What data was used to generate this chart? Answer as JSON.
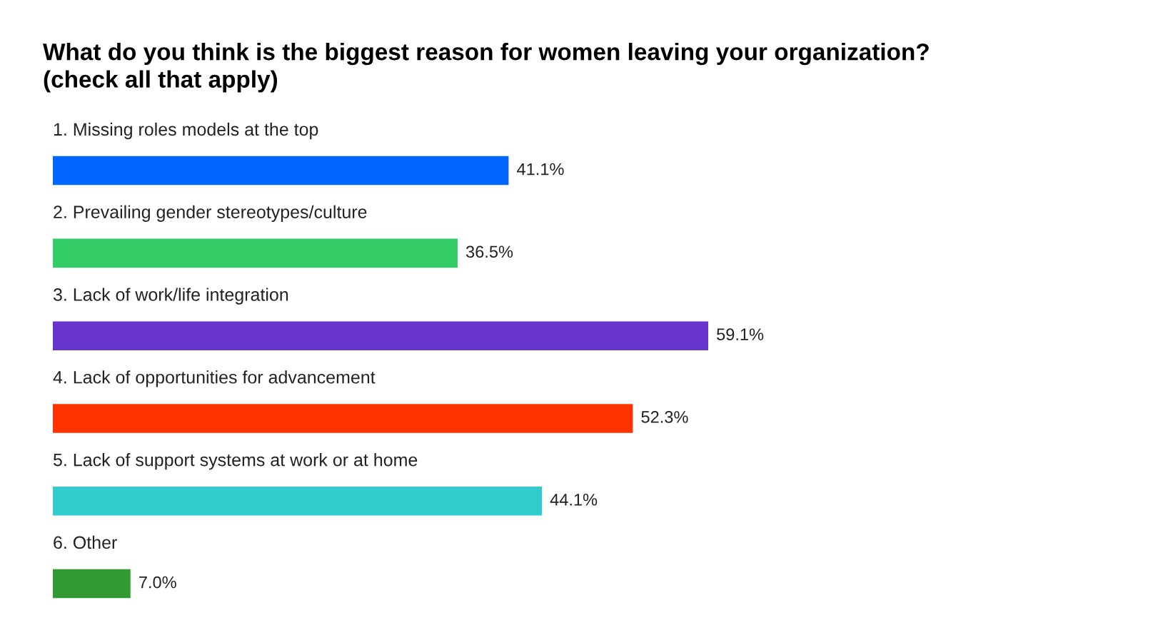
{
  "chart_data": {
    "type": "bar",
    "orientation": "horizontal",
    "title": "What do you think is the biggest reason for women leaving your organization?\n(check all that apply)",
    "categories": [
      "1. Missing roles models at the top",
      "2. Prevailing gender stereotypes/culture",
      "3. Lack of work/life integration",
      "4. Lack of opportunities for advancement",
      "5. Lack of support systems at work or at home",
      "6. Other"
    ],
    "values": [
      41.1,
      36.5,
      59.1,
      52.3,
      44.1,
      7.0
    ],
    "value_labels": [
      "41.1%",
      "36.5%",
      "59.1%",
      "52.3%",
      "44.1%",
      "7.0%"
    ],
    "colors": [
      "#0066ff",
      "#33cc66",
      "#6633cc",
      "#ff3300",
      "#33cccc",
      "#339933"
    ]
  }
}
